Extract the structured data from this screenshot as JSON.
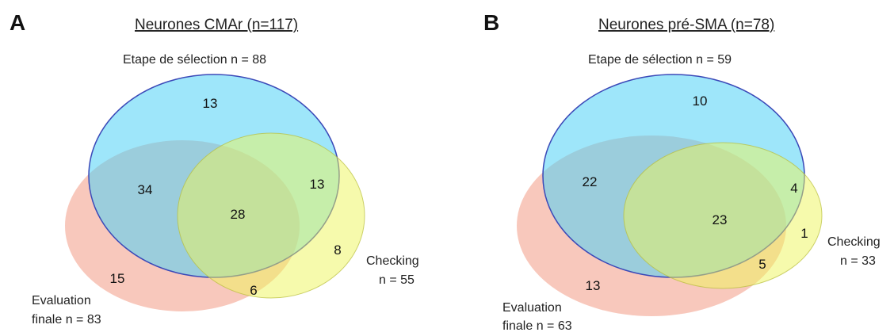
{
  "colors": {
    "etape_fill": "#4fd2f5",
    "etape_stroke": "#3b49b8",
    "evaluation_fill": "#f39a85",
    "checking_fill": "#eef55a",
    "checking_stroke": "#b8bd3a"
  },
  "panels": [
    {
      "letter": "A",
      "title": "Neurones CMAr (n=117)",
      "etape_label": "Etape de sélection n = 88",
      "evaluation_label_1": "Evaluation",
      "evaluation_label_2": "finale n = 83",
      "checking_label_1": "Checking",
      "checking_label_2": "n = 55",
      "counts": {
        "etape_only": "13",
        "etape_evaluation": "34",
        "all_three": "28",
        "etape_checking": "13",
        "evaluation_only": "15",
        "evaluation_checking": "6",
        "checking_only": "8"
      }
    },
    {
      "letter": "B",
      "title": "Neurones pré-SMA (n=78)",
      "etape_label": "Etape de sélection n = 59",
      "evaluation_label_1": "Evaluation",
      "evaluation_label_2": "finale n = 63",
      "checking_label_1": "Checking",
      "checking_label_2": "n = 33",
      "counts": {
        "etape_only": "10",
        "etape_evaluation": "22",
        "all_three": "23",
        "etape_checking": "4",
        "checking_only": "1",
        "evaluation_only": "13",
        "evaluation_checking": "5"
      }
    }
  ]
}
